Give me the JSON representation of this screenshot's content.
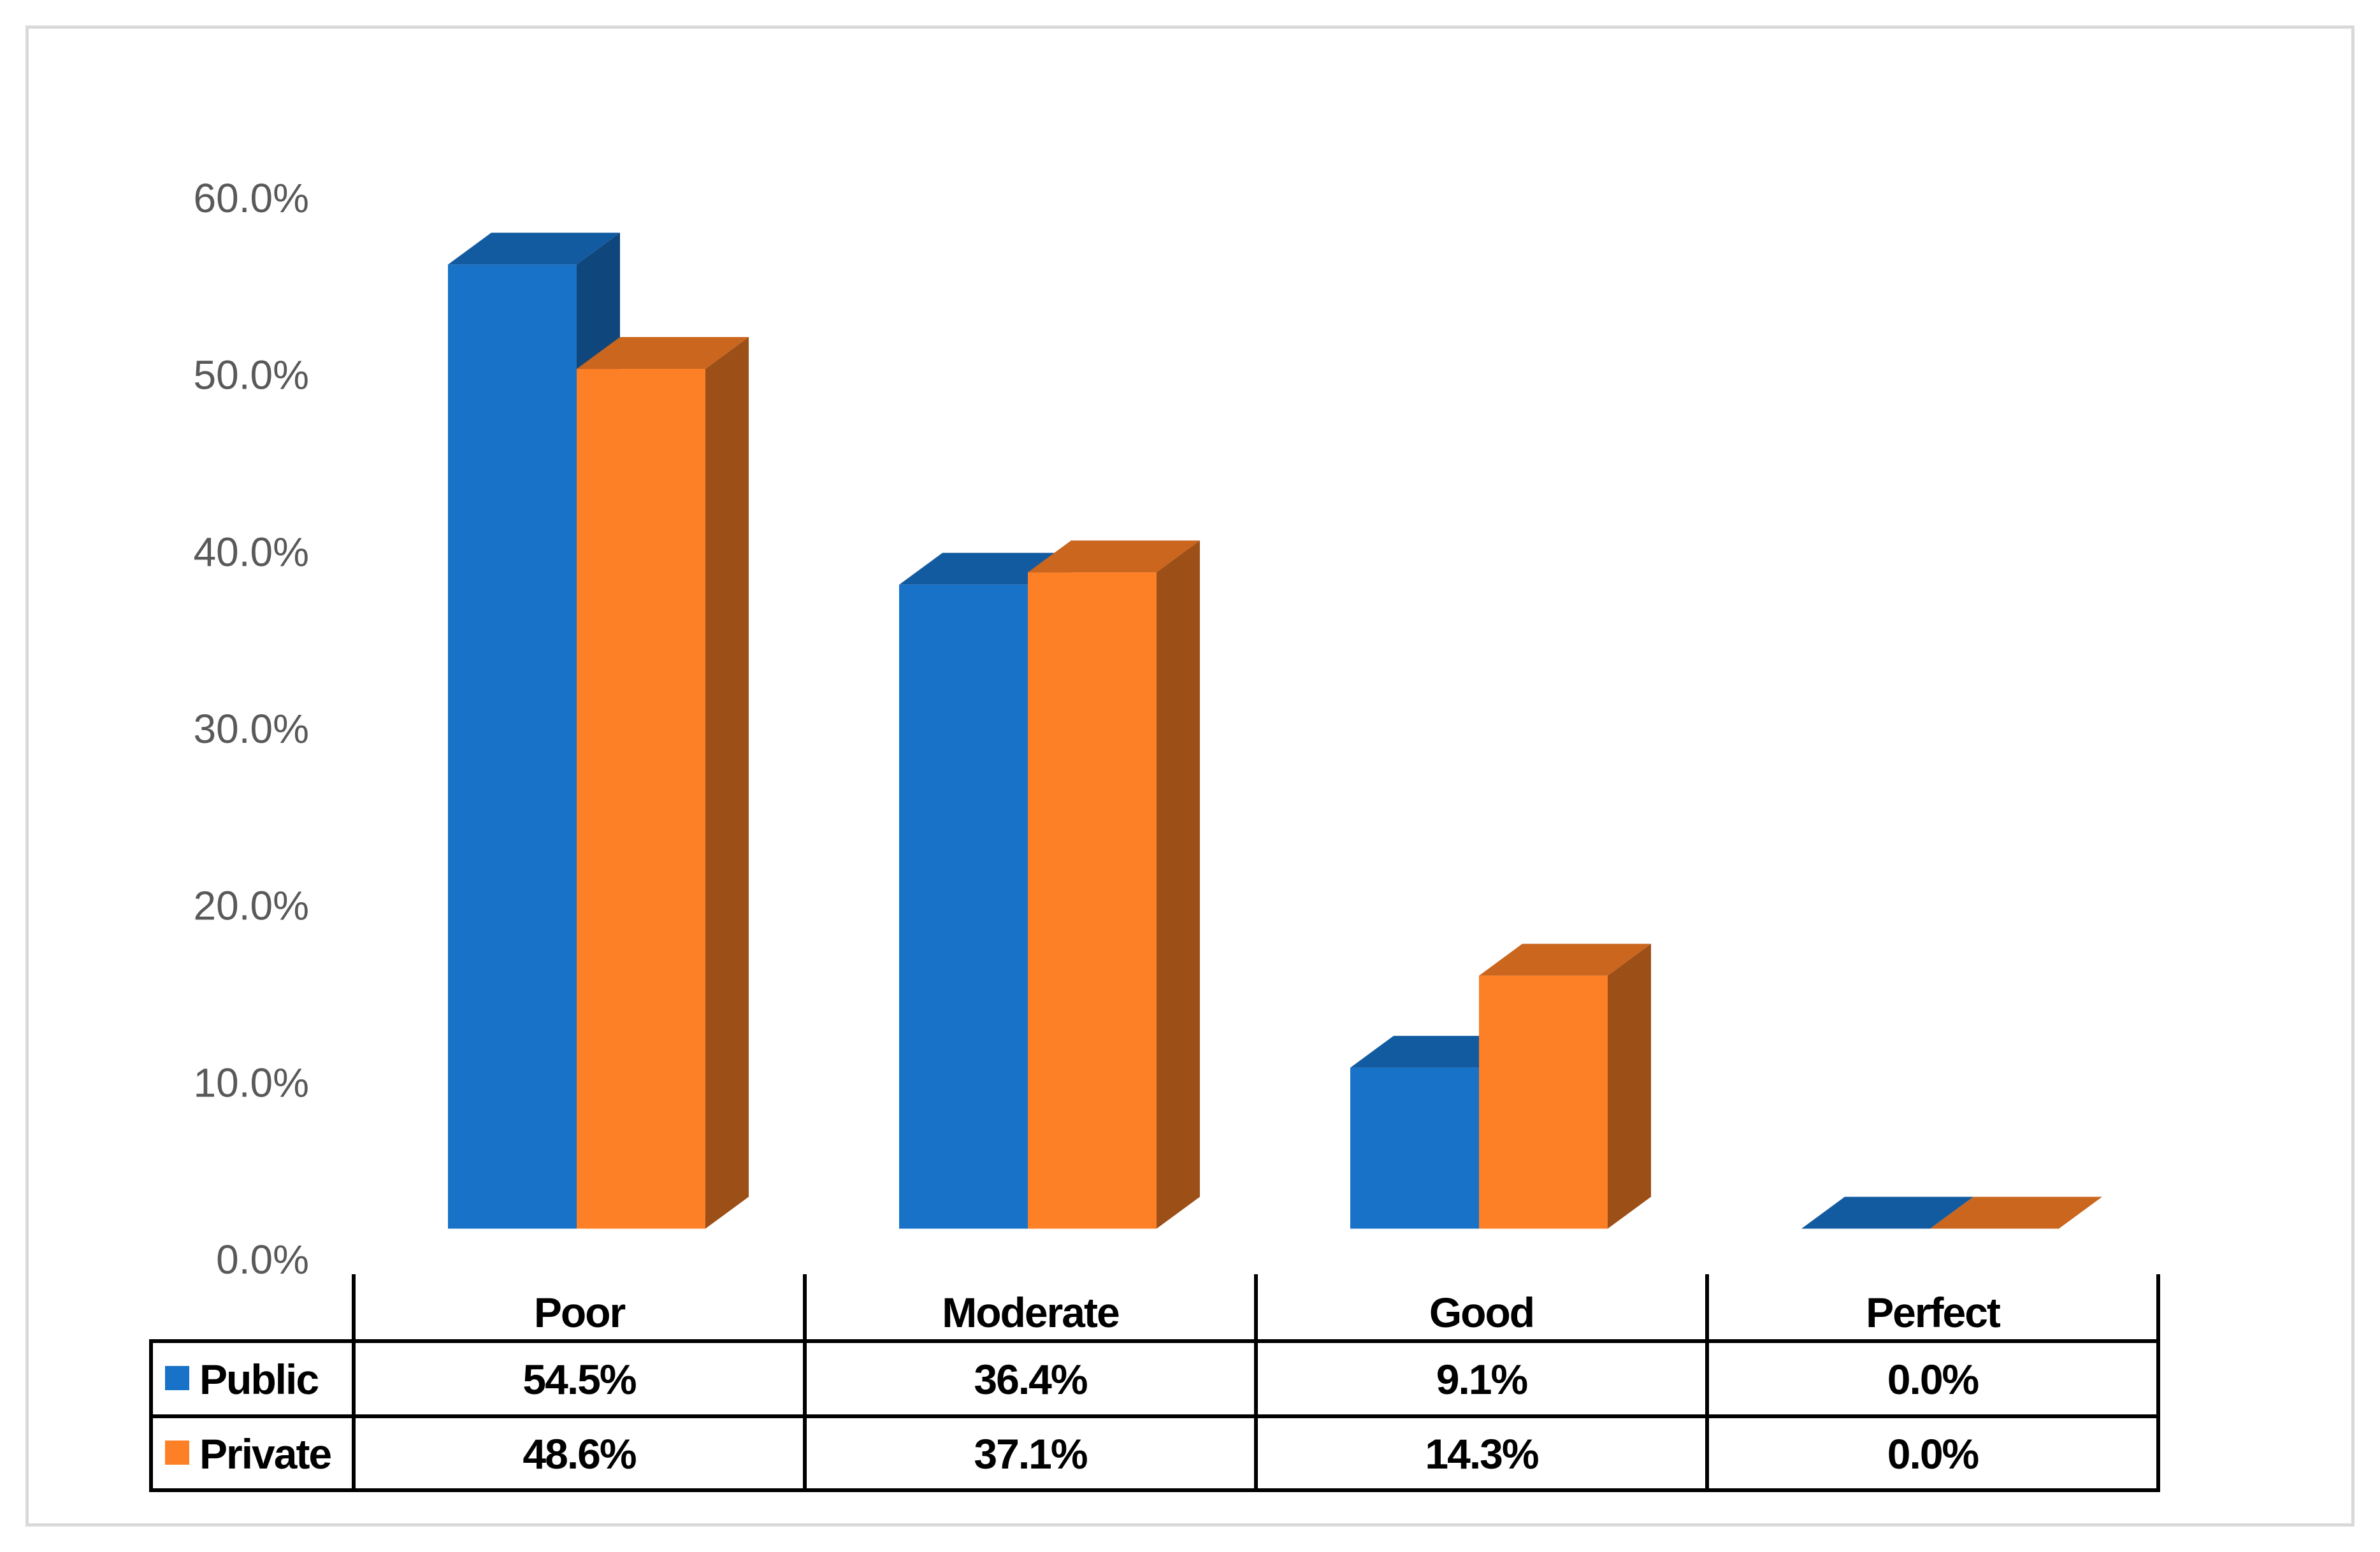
{
  "chart_data": {
    "type": "bar",
    "categories": [
      "Poor",
      "Moderate",
      "Good",
      "Perfect"
    ],
    "series": [
      {
        "name": "Public",
        "values": [
          54.5,
          36.4,
          9.1,
          0.0
        ],
        "labels": [
          "54.5%",
          "36.4%",
          "9.1%",
          "0.0%"
        ],
        "color": "#1872c8"
      },
      {
        "name": "Private",
        "values": [
          48.6,
          37.1,
          14.3,
          0.0
        ],
        "labels": [
          "48.6%",
          "37.1%",
          "14.3%",
          "0.0%"
        ],
        "color": "#fd7f26"
      }
    ],
    "y_ticks": [
      "0.0%",
      "10.0%",
      "20.0%",
      "30.0%",
      "40.0%",
      "50.0%",
      "60.0%"
    ],
    "ylim": [
      0,
      60
    ],
    "style": "3d-clustered-column",
    "data_table": true,
    "grid": false
  }
}
